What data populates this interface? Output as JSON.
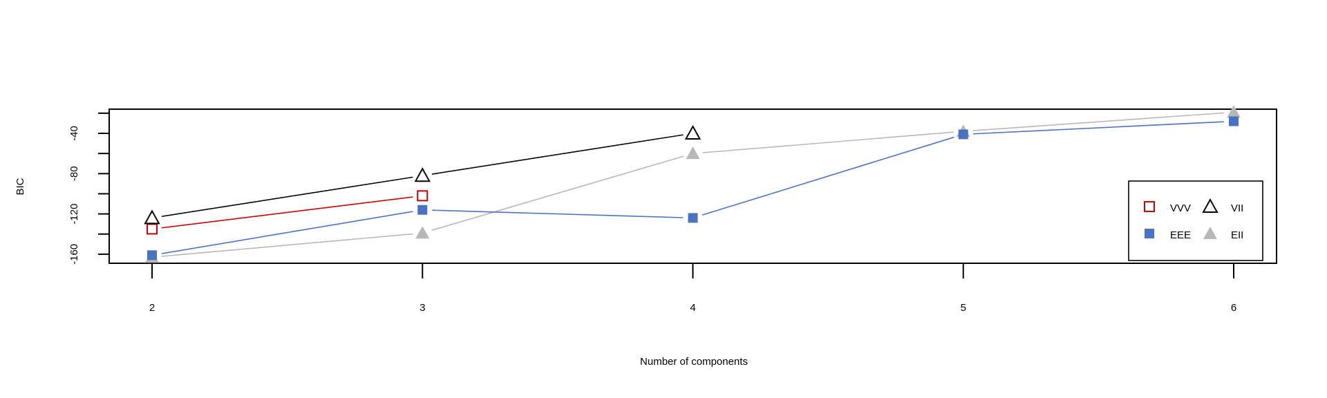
{
  "chart_data": {
    "type": "line",
    "title": "",
    "xlabel": "Number of components",
    "ylabel": "BIC",
    "x": [
      2,
      3,
      4,
      5,
      6
    ],
    "x_tick_labels": [
      "2",
      "3",
      "4",
      "5",
      "6"
    ],
    "y_ticks": [
      -160,
      -140,
      -120,
      -100,
      -80,
      -60,
      -40,
      -20
    ],
    "y_tick_labels": [
      "-160",
      "-120",
      "-80",
      "-40"
    ],
    "ylim": [
      -169,
      -16
    ],
    "grid": false,
    "legend_position": "bottom-right",
    "series": [
      {
        "name": "VVV",
        "color": "#cc0000",
        "marker": "open-square",
        "values": [
          -135,
          -102,
          null,
          null,
          null
        ]
      },
      {
        "name": "EEE",
        "color": "#4a72c4",
        "marker": "filled-square",
        "values": [
          -161,
          -116,
          -124,
          -41,
          -28
        ]
      },
      {
        "name": "VII",
        "color": "#000000",
        "marker": "open-triangle",
        "values": [
          -124,
          -82,
          -40,
          null,
          null
        ]
      },
      {
        "name": "EII",
        "color": "#b8b8b8",
        "marker": "filled-triangle",
        "values": [
          -163,
          -139,
          -60,
          -38,
          -19
        ]
      }
    ],
    "legend_layout": [
      [
        "VVV",
        "VII"
      ],
      [
        "EEE",
        "EII"
      ]
    ]
  }
}
